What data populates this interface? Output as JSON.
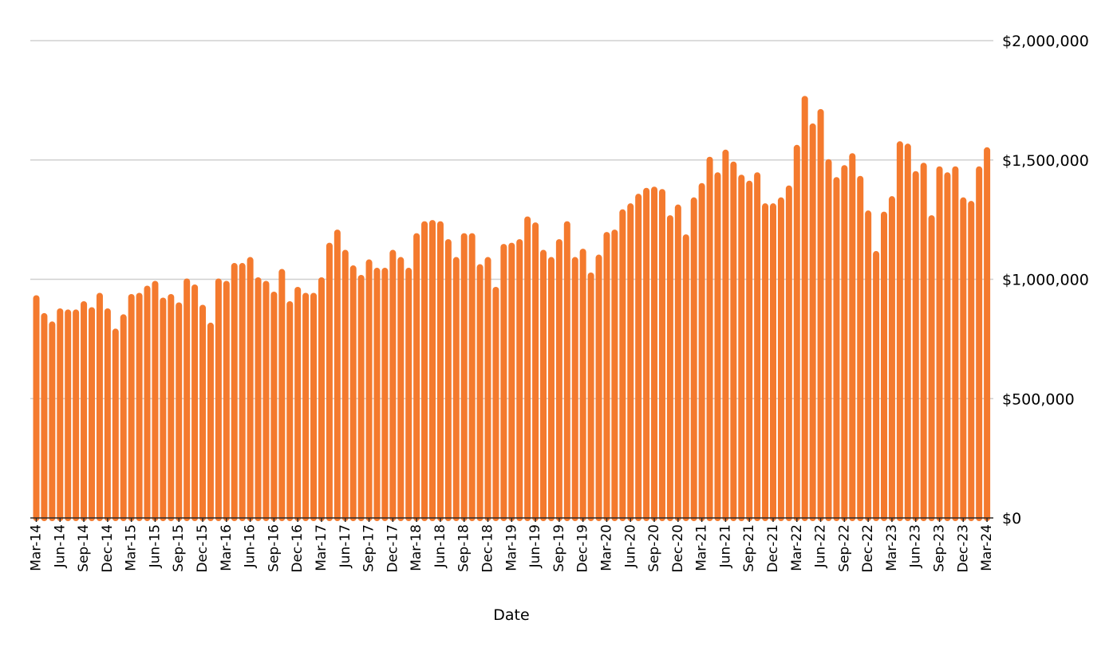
{
  "chart_data": {
    "type": "bar",
    "title": "",
    "xlabel": "Date",
    "ylabel": "",
    "ylim": [
      0,
      2000000
    ],
    "y_ticks": [
      0,
      500000,
      1000000,
      1500000,
      2000000
    ],
    "y_tick_labels": [
      "$0",
      "$500,000",
      "$1,000,000",
      "$1,500,000",
      "$2,000,000"
    ],
    "y_axis_position": "right",
    "grid": true,
    "legend": "none",
    "colors": {
      "bar": "#f47a2e",
      "grid": "#d0d0d0",
      "axis": "#2b2b2b"
    },
    "x_tick_labels": [
      "Mar-14",
      "Jun-14",
      "Sep-14",
      "Dec-14",
      "Mar-15",
      "Jun-15",
      "Sep-15",
      "Dec-15",
      "Mar-16",
      "Jun-16",
      "Sep-16",
      "Dec-16",
      "Mar-17",
      "Jun-17",
      "Sep-17",
      "Dec-17",
      "Mar-18",
      "Jun-18",
      "Sep-18",
      "Dec-18",
      "Mar-19",
      "Jun-19",
      "Sep-19",
      "Dec-19",
      "Mar-20",
      "Jun-20",
      "Sep-20",
      "Dec-20",
      "Mar-21",
      "Jun-21",
      "Sep-21",
      "Dec-21",
      "Mar-22",
      "Jun-22",
      "Sep-22",
      "Dec-22",
      "Mar-23",
      "Jun-23",
      "Sep-23",
      "Dec-23",
      "Mar-24"
    ],
    "categories": [
      "Mar-14",
      "Apr-14",
      "May-14",
      "Jun-14",
      "Jul-14",
      "Aug-14",
      "Sep-14",
      "Oct-14",
      "Nov-14",
      "Dec-14",
      "Jan-15",
      "Feb-15",
      "Mar-15",
      "Apr-15",
      "May-15",
      "Jun-15",
      "Jul-15",
      "Aug-15",
      "Sep-15",
      "Oct-15",
      "Nov-15",
      "Dec-15",
      "Jan-16",
      "Feb-16",
      "Mar-16",
      "Apr-16",
      "May-16",
      "Jun-16",
      "Jul-16",
      "Aug-16",
      "Sep-16",
      "Oct-16",
      "Nov-16",
      "Dec-16",
      "Jan-17",
      "Feb-17",
      "Mar-17",
      "Apr-17",
      "May-17",
      "Jun-17",
      "Jul-17",
      "Aug-17",
      "Sep-17",
      "Oct-17",
      "Nov-17",
      "Dec-17",
      "Jan-18",
      "Feb-18",
      "Mar-18",
      "Apr-18",
      "May-18",
      "Jun-18",
      "Jul-18",
      "Aug-18",
      "Sep-18",
      "Oct-18",
      "Nov-18",
      "Dec-18",
      "Jan-19",
      "Feb-19",
      "Mar-19",
      "Apr-19",
      "May-19",
      "Jun-19",
      "Jul-19",
      "Aug-19",
      "Sep-19",
      "Oct-19",
      "Nov-19",
      "Dec-19",
      "Jan-20",
      "Feb-20",
      "Mar-20",
      "Apr-20",
      "May-20",
      "Jun-20",
      "Jul-20",
      "Aug-20",
      "Sep-20",
      "Oct-20",
      "Nov-20",
      "Dec-20",
      "Jan-21",
      "Feb-21",
      "Mar-21",
      "Apr-21",
      "May-21",
      "Jun-21",
      "Jul-21",
      "Aug-21",
      "Sep-21",
      "Oct-21",
      "Nov-21",
      "Dec-21",
      "Jan-22",
      "Feb-22",
      "Mar-22",
      "Apr-22",
      "May-22",
      "Jun-22",
      "Jul-22",
      "Aug-22",
      "Sep-22",
      "Oct-22",
      "Nov-22",
      "Dec-22",
      "Jan-23",
      "Feb-23",
      "Mar-23",
      "Apr-23",
      "May-23",
      "Jun-23",
      "Jul-23",
      "Aug-23",
      "Sep-23",
      "Oct-23",
      "Nov-23",
      "Dec-23",
      "Jan-24",
      "Feb-24",
      "Mar-24"
    ],
    "values": [
      930000,
      855000,
      820000,
      875000,
      870000,
      870000,
      905000,
      880000,
      940000,
      875000,
      790000,
      850000,
      935000,
      940000,
      970000,
      990000,
      920000,
      935000,
      900000,
      1000000,
      975000,
      890000,
      815000,
      1000000,
      990000,
      1065000,
      1065000,
      1090000,
      1005000,
      990000,
      945000,
      1040000,
      905000,
      965000,
      940000,
      940000,
      1005000,
      1150000,
      1205000,
      1120000,
      1055000,
      1015000,
      1080000,
      1045000,
      1045000,
      1120000,
      1090000,
      1045000,
      1190000,
      1240000,
      1245000,
      1240000,
      1165000,
      1090000,
      1190000,
      1190000,
      1060000,
      1090000,
      965000,
      1145000,
      1150000,
      1165000,
      1260000,
      1235000,
      1120000,
      1090000,
      1165000,
      1240000,
      1090000,
      1125000,
      1025000,
      1100000,
      1195000,
      1205000,
      1290000,
      1315000,
      1355000,
      1380000,
      1385000,
      1375000,
      1265000,
      1310000,
      1185000,
      1340000,
      1400000,
      1510000,
      1445000,
      1540000,
      1490000,
      1435000,
      1410000,
      1445000,
      1315000,
      1315000,
      1340000,
      1390000,
      1560000,
      1765000,
      1650000,
      1710000,
      1500000,
      1425000,
      1475000,
      1525000,
      1430000,
      1285000,
      1115000,
      1280000,
      1345000,
      1575000,
      1565000,
      1450000,
      1485000,
      1265000,
      1470000,
      1445000,
      1470000,
      1340000,
      1325000,
      1470000,
      1550000
    ]
  }
}
